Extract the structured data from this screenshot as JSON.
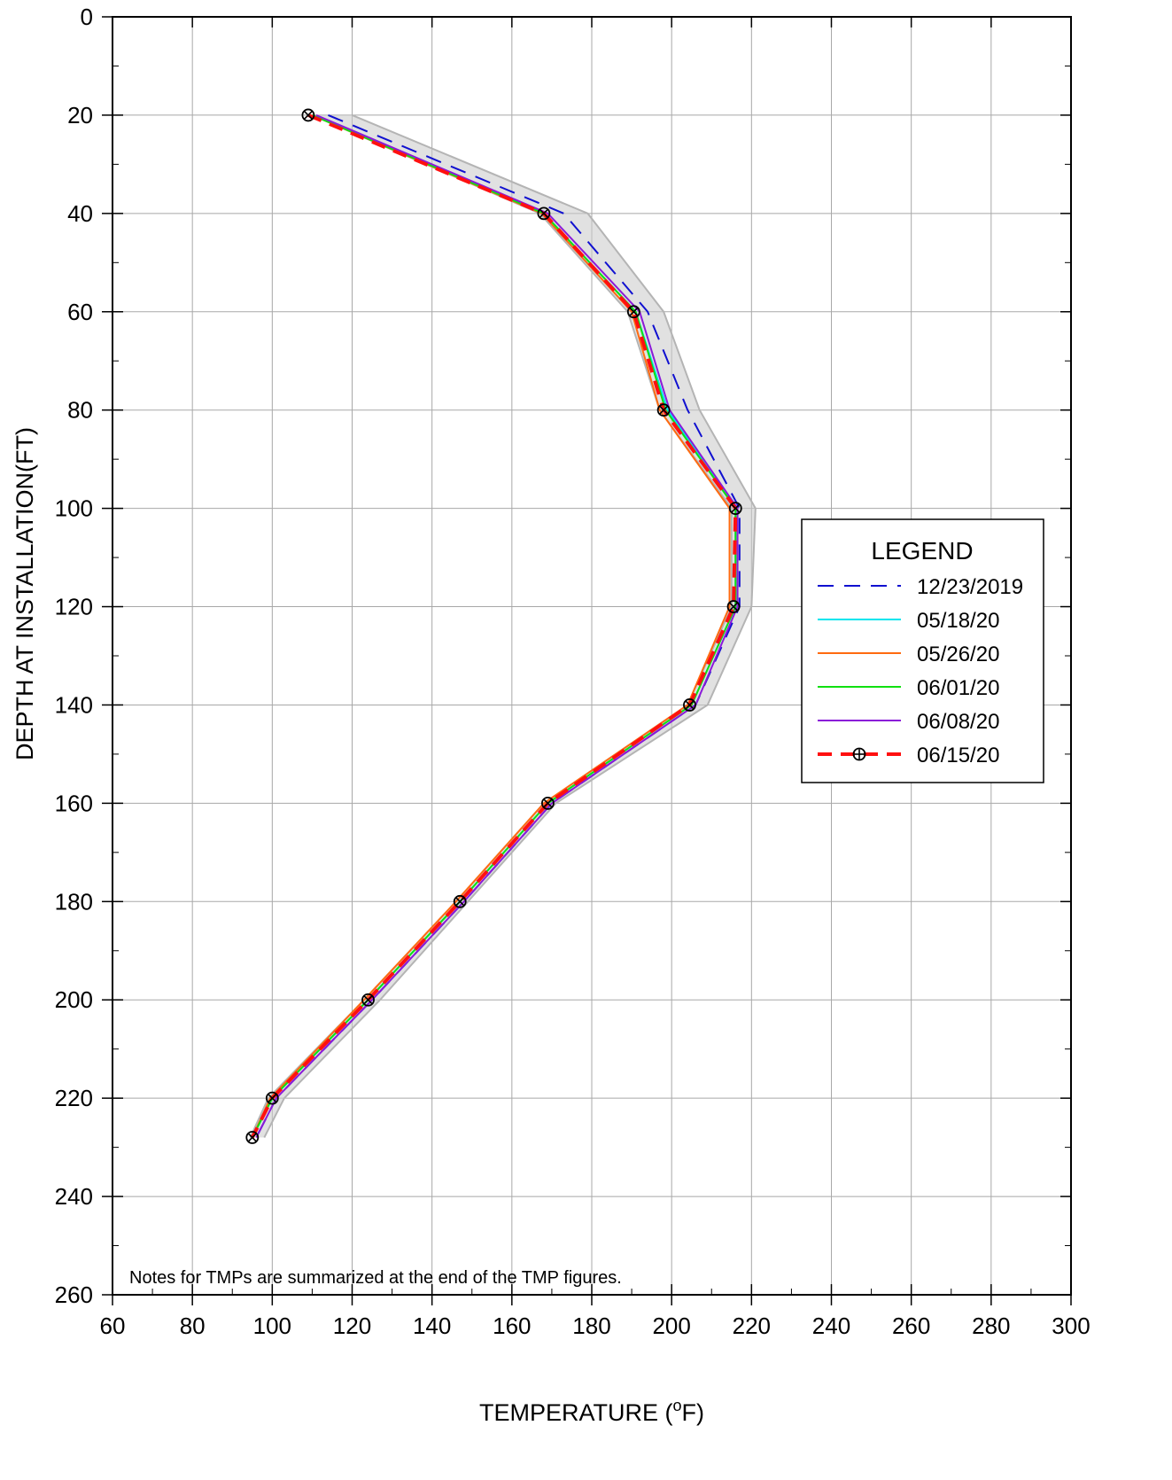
{
  "chart_data": {
    "type": "line",
    "orientation": "depth-profile",
    "xlabel_main": "TEMPERATURE (",
    "xlabel_sup": "o",
    "xlabel_end": "F)",
    "ylabel": "DEPTH AT INSTALLATION(FT)",
    "xlim": [
      60,
      300
    ],
    "ylim": [
      0,
      260
    ],
    "y_inverted": true,
    "x_ticks": [
      60,
      80,
      100,
      120,
      140,
      160,
      180,
      200,
      220,
      240,
      260,
      280,
      300
    ],
    "y_ticks": [
      0,
      20,
      40,
      60,
      80,
      100,
      120,
      140,
      160,
      180,
      200,
      220,
      240,
      260
    ],
    "grid": true,
    "legend_position": "right",
    "legend_title": "LEGEND",
    "note": "Notes for TMPs are summarized at the end of the TMP figures.",
    "depths": [
      20,
      40,
      60,
      80,
      100,
      120,
      140,
      160,
      180,
      200,
      220,
      228
    ],
    "gray_envelope": {
      "color": "#b4b4b4",
      "left": [
        110,
        167,
        189,
        197,
        215,
        215,
        204,
        168,
        146,
        123,
        99,
        94.5
      ],
      "right": [
        120,
        179,
        198,
        207,
        221,
        220,
        209,
        171,
        149,
        127,
        103,
        98
      ]
    },
    "series": [
      {
        "name": "12/23/2019",
        "color": "#1010d0",
        "dash": "18,12",
        "width": 2,
        "values": [
          114,
          173,
          194,
          204,
          217,
          217,
          206,
          170,
          148,
          125,
          101,
          96
        ]
      },
      {
        "name": "05/18/20",
        "color": "#00e5ee",
        "dash": "",
        "width": 2,
        "values": [
          110,
          168,
          191,
          199,
          216,
          216,
          205,
          169,
          147,
          124,
          100,
          95
        ]
      },
      {
        "name": "05/26/20",
        "color": "#ff6a10",
        "dash": "",
        "width": 2,
        "values": [
          110,
          167.5,
          190,
          197,
          214.5,
          214.5,
          204,
          168,
          146,
          123,
          99.5,
          95
        ]
      },
      {
        "name": "06/01/20",
        "color": "#10e010",
        "dash": "",
        "width": 2,
        "values": [
          110,
          168,
          191,
          198.5,
          216,
          216,
          205,
          169,
          147,
          124,
          100,
          95
        ]
      },
      {
        "name": "06/08/20",
        "color": "#8a1ad8",
        "dash": "",
        "width": 2,
        "values": [
          111,
          169,
          192,
          199.5,
          216.5,
          216.5,
          206,
          170,
          148,
          125,
          101,
          96
        ]
      },
      {
        "name": "06/15/20",
        "color": "#ff1010",
        "dash": "16,10",
        "width": 4,
        "marker": "circle-cross",
        "values": [
          109,
          168,
          190.5,
          198,
          216,
          215.5,
          204.5,
          169,
          147,
          124,
          100,
          95
        ]
      }
    ]
  }
}
